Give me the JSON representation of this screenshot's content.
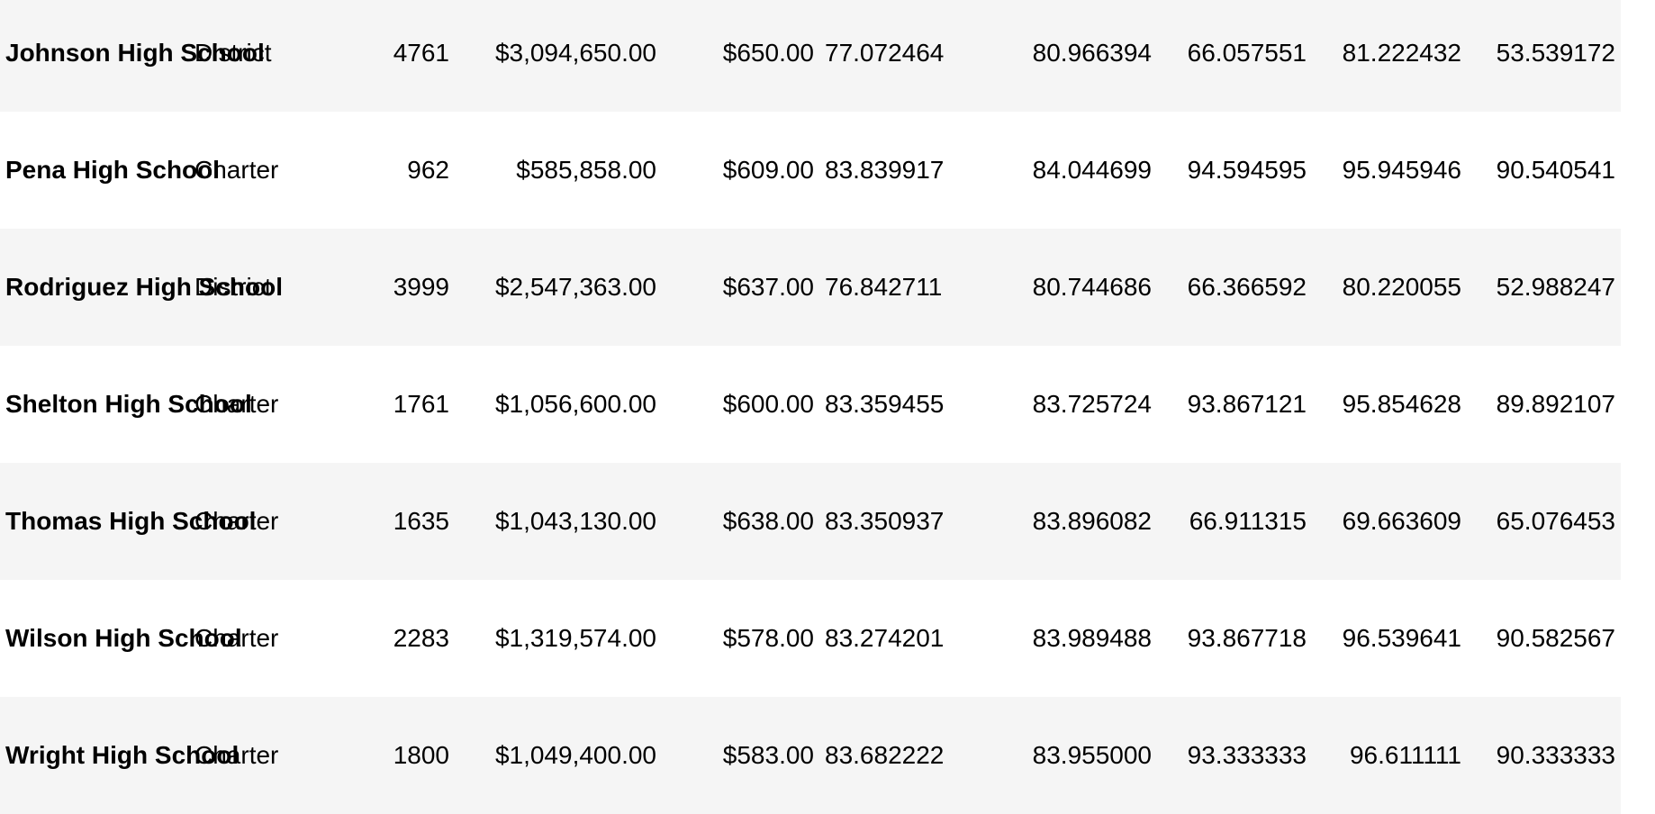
{
  "table": {
    "rows": [
      {
        "school": "Johnson High School",
        "type": "District",
        "size": "4761",
        "budget": "$3,094,650.00",
        "per_student": "$650.00",
        "avg_math": "77.072464",
        "avg_reading": "80.966394",
        "pct_math": "66.057551",
        "pct_reading": "81.222432",
        "pct_overall": "53.539172"
      },
      {
        "school": "Pena High School",
        "type": "Charter",
        "size": "962",
        "budget": "$585,858.00",
        "per_student": "$609.00",
        "avg_math": "83.839917",
        "avg_reading": "84.044699",
        "pct_math": "94.594595",
        "pct_reading": "95.945946",
        "pct_overall": "90.540541"
      },
      {
        "school": "Rodriguez High School",
        "type": "District",
        "size": "3999",
        "budget": "$2,547,363.00",
        "per_student": "$637.00",
        "avg_math": "76.842711",
        "avg_reading": "80.744686",
        "pct_math": "66.366592",
        "pct_reading": "80.220055",
        "pct_overall": "52.988247"
      },
      {
        "school": "Shelton High School",
        "type": "Charter",
        "size": "1761",
        "budget": "$1,056,600.00",
        "per_student": "$600.00",
        "avg_math": "83.359455",
        "avg_reading": "83.725724",
        "pct_math": "93.867121",
        "pct_reading": "95.854628",
        "pct_overall": "89.892107"
      },
      {
        "school": "Thomas High School",
        "type": "Charter",
        "size": "1635",
        "budget": "$1,043,130.00",
        "per_student": "$638.00",
        "avg_math": "83.350937",
        "avg_reading": "83.896082",
        "pct_math": "66.911315",
        "pct_reading": "69.663609",
        "pct_overall": "65.076453"
      },
      {
        "school": "Wilson High School",
        "type": "Charter",
        "size": "2283",
        "budget": "$1,319,574.00",
        "per_student": "$578.00",
        "avg_math": "83.274201",
        "avg_reading": "83.989488",
        "pct_math": "93.867718",
        "pct_reading": "96.539641",
        "pct_overall": "90.582567"
      },
      {
        "school": "Wright High School",
        "type": "Charter",
        "size": "1800",
        "budget": "$1,049,400.00",
        "per_student": "$583.00",
        "avg_math": "83.682222",
        "avg_reading": "83.955000",
        "pct_math": "93.333333",
        "pct_reading": "96.611111",
        "pct_overall": "90.333333"
      }
    ]
  }
}
